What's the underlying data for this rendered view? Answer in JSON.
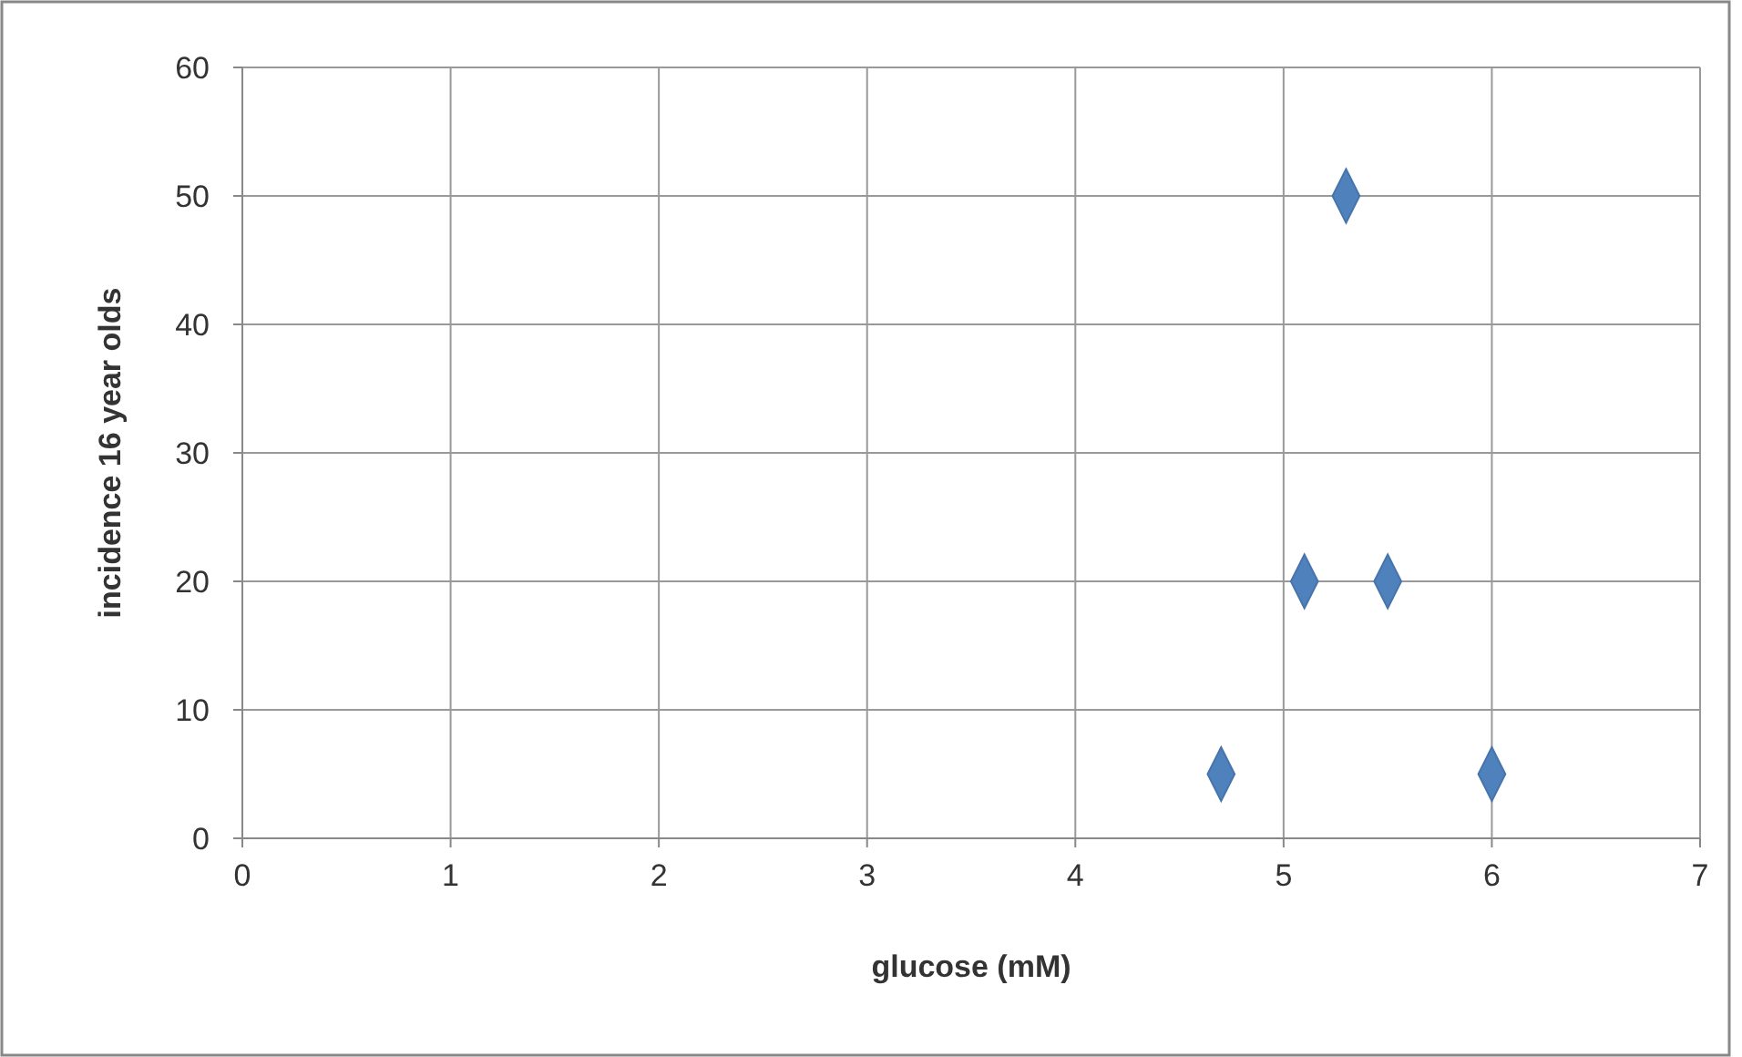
{
  "chart_data": {
    "type": "scatter",
    "xlabel": "glucose (mM)",
    "ylabel": "incidence 16 year olds",
    "x": [
      4.7,
      5.1,
      5.3,
      5.5,
      6
    ],
    "values": [
      5,
      20,
      50,
      20,
      5
    ],
    "color": "#4f81bd",
    "marker": "diamond",
    "xlim": [
      0,
      7
    ],
    "xticks": [
      0,
      1,
      2,
      3,
      4,
      5,
      6,
      7
    ],
    "ylim": [
      0,
      60
    ],
    "yticks": [
      0,
      10,
      20,
      30,
      40,
      50,
      60
    ],
    "grid": true
  }
}
